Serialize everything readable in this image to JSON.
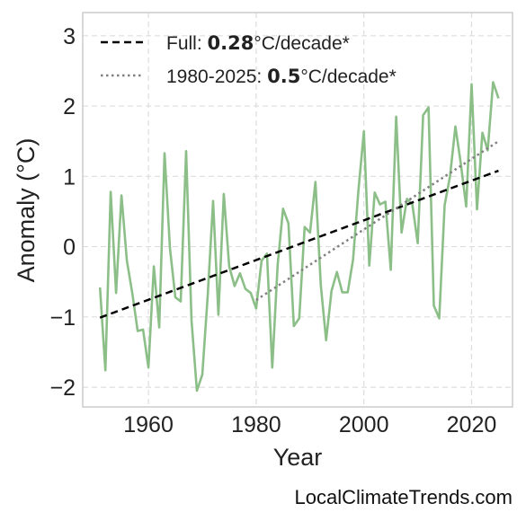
{
  "chart_data": {
    "type": "line",
    "title": "",
    "xlabel": "Year",
    "ylabel": "Anomaly (°C)",
    "xlim": [
      1947.8,
      2027.6
    ],
    "ylim": [
      -2.28,
      3.33
    ],
    "xticks": [
      1960,
      1980,
      2000,
      2020
    ],
    "yticks": [
      -2,
      -1,
      0,
      1,
      2,
      3
    ],
    "grid": true,
    "legend_position": "top-left",
    "colors": {
      "series": "#8cbf88",
      "full_trend": "#000000",
      "recent_trend": "#808080",
      "grid": "#dddddd",
      "frame": "#cccccc"
    },
    "series": [
      {
        "x": [
          1951,
          1952,
          1953,
          1954,
          1955,
          1956,
          1957,
          1958,
          1959,
          1960,
          1961,
          1962,
          1963,
          1964,
          1965,
          1966,
          1967,
          1968,
          1969,
          1970,
          1971,
          1972,
          1973,
          1974,
          1975,
          1976,
          1977,
          1978,
          1979,
          1980,
          1981,
          1982,
          1983,
          1984,
          1985,
          1986,
          1987,
          1988,
          1989,
          1990,
          1991,
          1992,
          1993,
          1994,
          1995,
          1996,
          1997,
          1998,
          1999,
          2000,
          2001,
          2002,
          2003,
          2004,
          2005,
          2006,
          2007,
          2008,
          2009,
          2010,
          2011,
          2012,
          2013,
          2014,
          2015,
          2016,
          2017,
          2018,
          2019,
          2020,
          2021,
          2022,
          2023,
          2024,
          2025
        ],
        "values": [
          -0.58,
          -1.76,
          0.78,
          -0.66,
          0.73,
          -0.2,
          -0.66,
          -1.2,
          -1.18,
          -1.72,
          -0.28,
          -1.15,
          1.33,
          -0.02,
          -0.72,
          -0.78,
          1.36,
          -1.05,
          -2.05,
          -1.82,
          -0.7,
          0.65,
          -0.97,
          0.75,
          -0.28,
          -0.56,
          -0.38,
          -0.6,
          -0.66,
          -0.88,
          -0.2,
          -0.1,
          -1.72,
          -0.26,
          0.54,
          0.33,
          -1.13,
          -1.02,
          0.28,
          0.2,
          0.92,
          -0.55,
          -1.33,
          -0.63,
          -0.36,
          -0.65,
          -0.65,
          -0.18,
          0.81,
          1.64,
          -0.27,
          0.77,
          0.6,
          0.64,
          -0.33,
          1.85,
          0.2,
          0.68,
          0.6,
          0.05,
          1.87,
          1.98,
          -0.84,
          -1.02,
          0.59,
          1.0,
          1.71,
          1.18,
          0.57,
          2.31,
          0.53,
          1.62,
          1.37,
          2.34,
          2.11
        ]
      }
    ],
    "trend_lines": [
      {
        "style": "dashed",
        "x": [
          1951,
          2025
        ],
        "y": [
          -1.01,
          1.08
        ],
        "legend_prefix": "Full: ",
        "rate": "0.28",
        "unit": "°C/decade*"
      },
      {
        "style": "dotted",
        "x": [
          1980,
          2025
        ],
        "y": [
          -0.76,
          1.5
        ],
        "legend_prefix": "1980-2025: ",
        "rate": "0.5",
        "unit": "°C/decade*"
      }
    ]
  },
  "credit": "LocalClimateTrends.com"
}
